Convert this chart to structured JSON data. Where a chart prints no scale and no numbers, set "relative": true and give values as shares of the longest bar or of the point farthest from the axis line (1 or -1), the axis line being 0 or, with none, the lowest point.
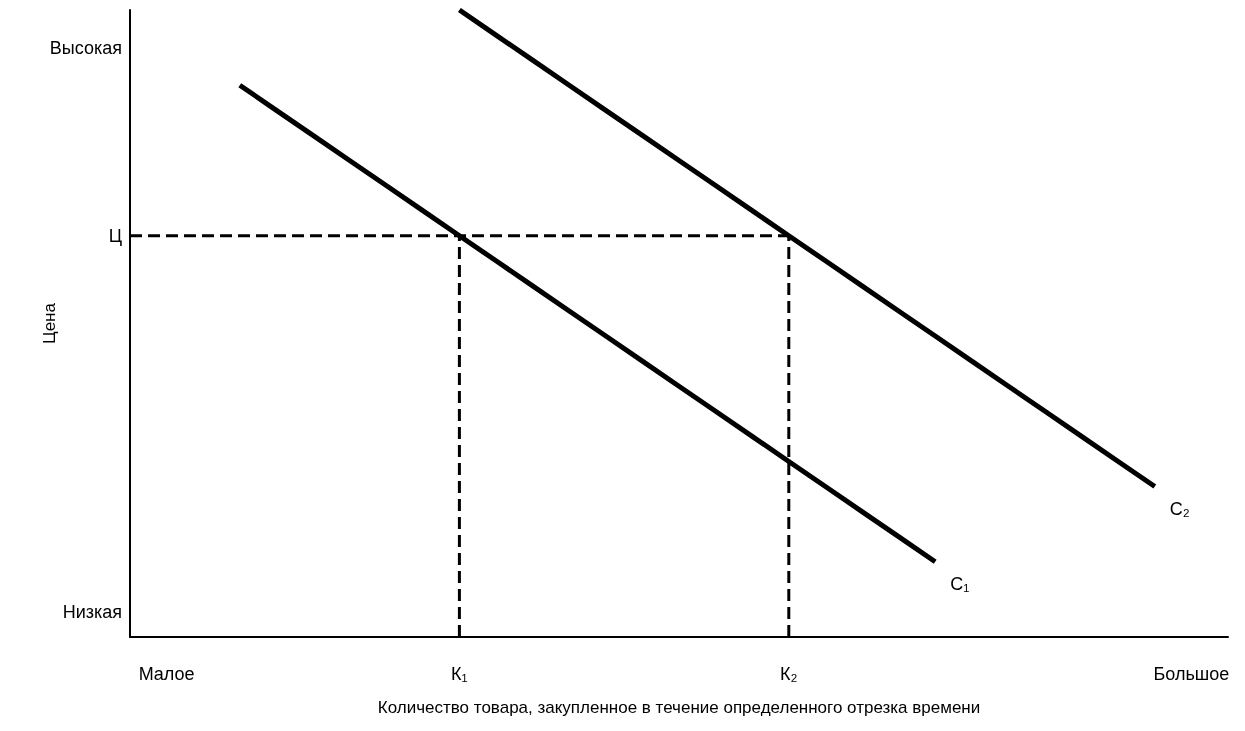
{
  "chart_data": {
    "type": "line",
    "relative": true,
    "xlabel": "Количество товара, закупленное в течение определенного отрезка времени",
    "ylabel": "Цена",
    "categories": [
      null,
      "Малое",
      null,
      null,
      null,
      null,
      null,
      null,
      null,
      "К₁",
      null,
      null,
      null,
      null,
      null,
      null,
      null,
      null,
      "К₂",
      null,
      null,
      null,
      null,
      null,
      null,
      null,
      null,
      null,
      null,
      "Большое",
      null
    ],
    "annotations": [
      "Высокая",
      "Ц",
      "Низкая"
    ],
    "grid": false,
    "legend": false,
    "marker": "none",
    "series": [
      {
        "name": "С₁",
        "color": "#000000",
        "values": [
          null,
          null,
          null,
          0.88,
          0.84,
          0.8,
          0.76,
          0.72,
          0.68,
          0.64,
          0.6,
          0.56,
          0.52,
          0.48,
          0.44,
          0.4,
          0.36,
          0.32,
          0.28,
          0.24,
          0.2,
          0.16,
          0.12,
          null,
          null,
          null,
          null,
          null,
          null,
          null,
          null
        ]
      },
      {
        "name": "С₂",
        "color": "#000000",
        "values": [
          null,
          null,
          null,
          null,
          null,
          null,
          null,
          null,
          null,
          1.0,
          0.96,
          0.92,
          0.88,
          0.84,
          0.8,
          0.76,
          0.72,
          0.68,
          0.64,
          0.6,
          0.56,
          0.52,
          0.48,
          0.44,
          0.4,
          0.36,
          0.32,
          0.28,
          0.24,
          null,
          null
        ]
      },
      {
        "color": "#000000",
        "line_style": "dashed",
        "values": [
          0.64,
          0.64,
          0.64,
          0.64,
          0.64,
          0.64,
          0.64,
          0.64,
          0.64,
          0.64,
          0.64,
          0.64,
          0.64,
          0.64,
          0.64,
          0.64,
          0.64,
          0.64,
          0.64,
          null,
          null,
          null,
          null,
          null,
          null,
          null,
          null,
          null,
          null,
          null,
          null
        ]
      },
      {
        "color": "#000000",
        "line_style": "dashed",
        "x": [
          "К₁",
          "К₁"
        ],
        "values": [
          0,
          0.64
        ]
      },
      {
        "color": "#000000",
        "line_style": "dashed",
        "x": [
          "К₂",
          "К₂"
        ],
        "values": [
          0,
          0.64
        ]
      }
    ]
  }
}
